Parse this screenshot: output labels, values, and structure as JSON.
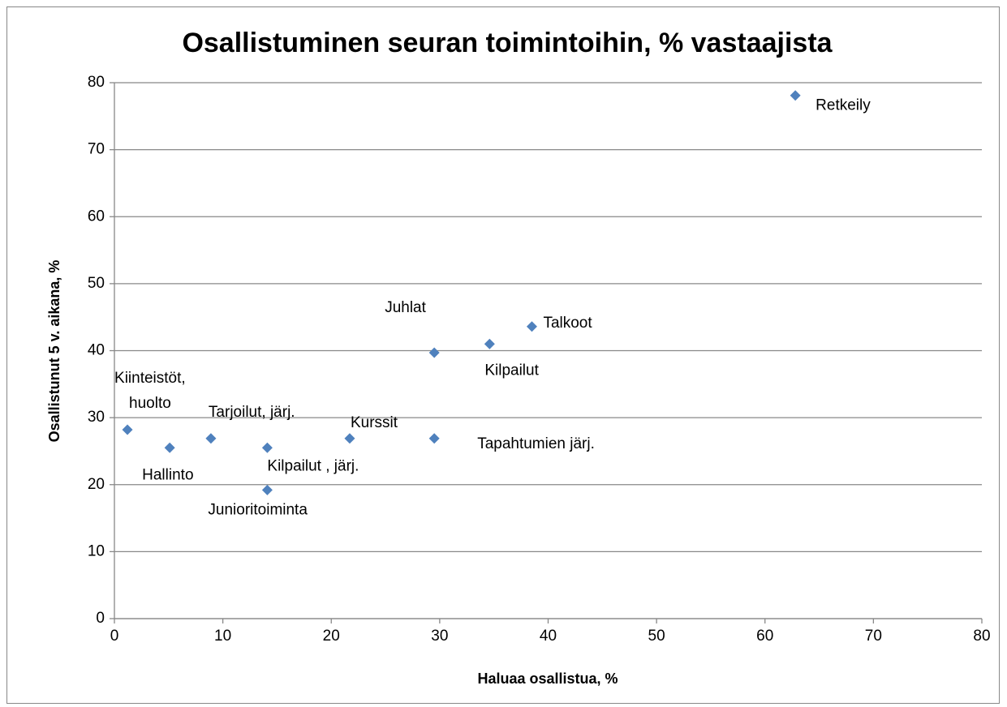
{
  "chart_data": {
    "type": "scatter",
    "title": "Osallistuminen seuran toimintoihin, % vastaajista",
    "x_label": "Haluaa osallistua, %",
    "y_label": "Osallistunut 5 v. aikana, %",
    "x": [
      62.8,
      38.5,
      34.6,
      29.5,
      29.5,
      21.7,
      14.1,
      14.1,
      8.9,
      5.1,
      1.2
    ],
    "values": [
      78.1,
      43.6,
      41.0,
      39.7,
      26.9,
      26.9,
      25.5,
      19.2,
      26.9,
      25.5,
      28.2
    ],
    "labels": [
      [
        "Retkeily"
      ],
      [
        "Talkoot"
      ],
      [
        "Kilpailut"
      ],
      [
        "Juhlat"
      ],
      [
        "Tapahtumien järj."
      ],
      [
        "Kurssit"
      ],
      [
        "Kilpailut , järj."
      ],
      [
        "Junioritoiminta"
      ],
      [
        "Tarjoilut, järj."
      ],
      [
        "Hallinto"
      ],
      [
        "Kiinteistöt,",
        "huolto"
      ]
    ],
    "color": "#4f81bd",
    "xlim": [
      0,
      80
    ],
    "xticks": [
      0,
      10,
      20,
      30,
      40,
      50,
      60,
      70,
      80
    ],
    "ylim": [
      0,
      80
    ],
    "yticks": [
      0,
      10,
      20,
      30,
      40,
      50,
      60,
      70,
      80
    ],
    "grid": true
  }
}
